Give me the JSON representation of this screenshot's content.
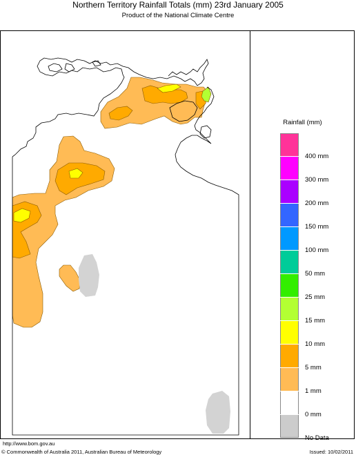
{
  "title": "Northern Territory Rainfall Totals (mm) 23rd January 2005",
  "subtitle": "Product of the National Climate Centre",
  "legend": {
    "title": "Rainfall (mm)",
    "items": [
      {
        "label": "400 mm",
        "color": "#ff3399",
        "border_top": "#888"
      },
      {
        "label": "300 mm",
        "color": "#ff00ff"
      },
      {
        "label": "200 mm",
        "color": "#aa00ff"
      },
      {
        "label": "150 mm",
        "color": "#3366ff"
      },
      {
        "label": "100 mm",
        "color": "#0099ff"
      },
      {
        "label": "50 mm",
        "color": "#00cc99"
      },
      {
        "label": "25 mm",
        "color": "#33ee00"
      },
      {
        "label": "15 mm",
        "color": "#b3ff33"
      },
      {
        "label": "10 mm",
        "color": "#ffff00"
      },
      {
        "label": "5 mm",
        "color": "#ffaa00"
      },
      {
        "label": "1 mm",
        "color": "#ffbb55"
      },
      {
        "label": "0 mm",
        "color": "#ffffff"
      },
      {
        "label": "No Data",
        "color": "#cccccc"
      }
    ]
  },
  "map_colors": {
    "no_data": "#d3d3d3",
    "r1": "#ffbb55",
    "r5": "#ffaa00",
    "r10": "#ffff00",
    "r15": "#b3ff33"
  },
  "footer": {
    "url": "http://www.bom.gov.au",
    "copyright": "© Commonwealth of Australia 2011, Australian Bureau of Meteorology",
    "issued": "Issued: 10/02/2011"
  }
}
